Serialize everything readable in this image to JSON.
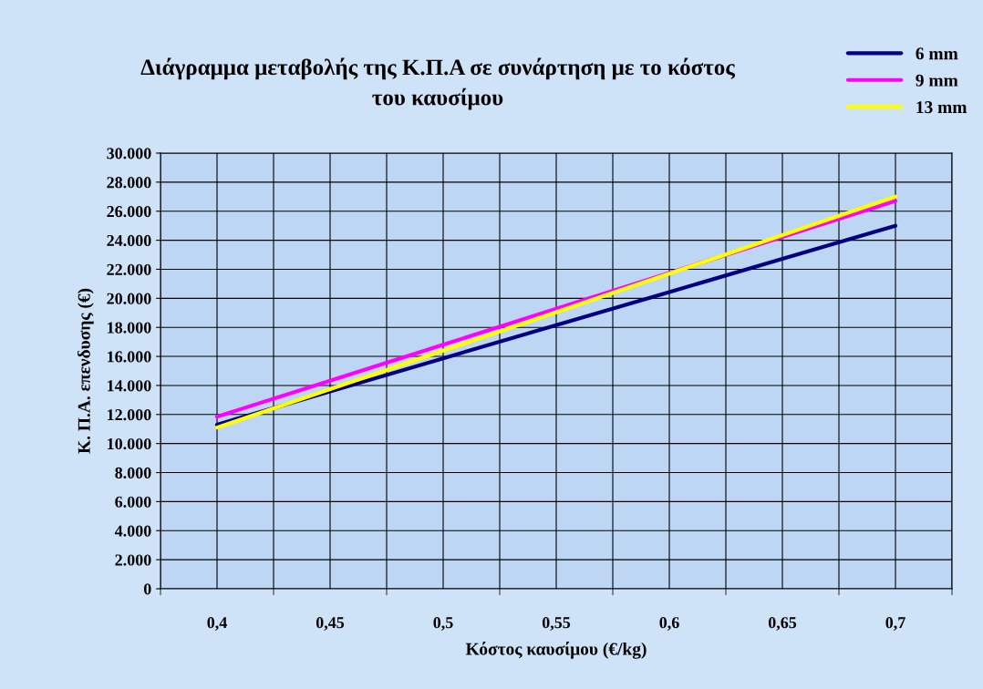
{
  "chart_data": {
    "type": "line",
    "title": "Διάγραμμα μεταβολής της Κ.Π.Α σε συνάρτηση με το κόστος\nτου καυσίμου",
    "xlabel": "Κόστος καυσίμου (€/kg)",
    "ylabel": "Κ. Π.Α. επενδυσης (€)",
    "categories": [
      "0,4",
      "0,45",
      "0,5",
      "0,55",
      "0,6",
      "0,65",
      "0,7"
    ],
    "series": [
      {
        "name": "6 mm",
        "color": "#000080",
        "values": [
          11300,
          13580,
          15870,
          18150,
          20430,
          22720,
          25000
        ]
      },
      {
        "name": "9 mm",
        "color": "#ff00ff",
        "values": [
          11850,
          14330,
          16800,
          19280,
          21750,
          24230,
          26700
        ]
      },
      {
        "name": "13 mm",
        "color": "#ffff00",
        "values": [
          11100,
          13750,
          16400,
          19050,
          21700,
          24350,
          27000
        ]
      }
    ],
    "ylim": [
      0,
      30000
    ],
    "yticks": [
      0,
      {
        "value": 2000,
        "label": "2.000"
      },
      {
        "value": 4000,
        "label": "4.000"
      },
      {
        "value": 6000,
        "label": "6.000"
      },
      {
        "value": 8000,
        "label": "8.000"
      },
      {
        "value": 10000,
        "label": "10.000"
      },
      {
        "value": 12000,
        "label": "12.000"
      },
      {
        "value": 14000,
        "label": "14.000"
      },
      {
        "value": 16000,
        "label": "16.000"
      },
      {
        "value": 18000,
        "label": "18.000"
      },
      {
        "value": 20000,
        "label": "20.000"
      },
      {
        "value": 22000,
        "label": "22.000"
      },
      {
        "value": 24000,
        "label": "24.000"
      },
      {
        "value": 26000,
        "label": "26.000"
      },
      {
        "value": 28000,
        "label": "28.000"
      },
      {
        "value": 30000,
        "label": "30.000"
      }
    ],
    "grid": true,
    "legend": "top right",
    "marker": "none",
    "line_style": "solid"
  }
}
